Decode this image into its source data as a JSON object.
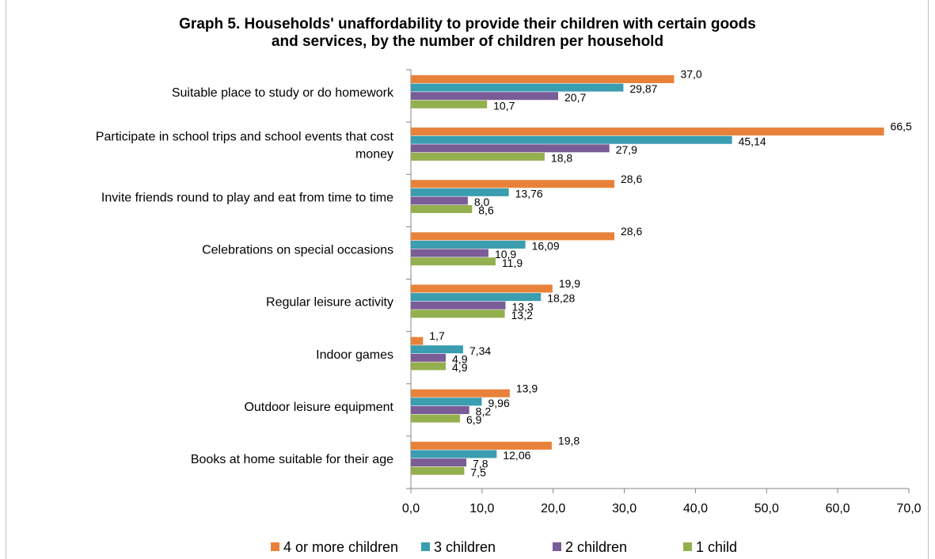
{
  "chart_data": {
    "type": "bar",
    "orientation": "horizontal",
    "title_lines": [
      "Graph 5. Households' unaffordability to provide their children with certain goods",
      "and services, by the number of children per household"
    ],
    "categories": [
      [
        "Suitable place to study or do homework"
      ],
      [
        "Participate in school trips and school events that cost",
        "money"
      ],
      [
        "Invite friends round to play and eat from time to time"
      ],
      [
        "Celebrations on special occasions"
      ],
      [
        "Regular leisure activity"
      ],
      [
        "Indoor games"
      ],
      [
        "Outdoor leisure equipment"
      ],
      [
        "Books at home suitable for their age"
      ]
    ],
    "series": [
      {
        "name": "4 or more children",
        "color": "#E8823A",
        "values": [
          37.0,
          66.5,
          28.6,
          28.6,
          19.9,
          1.7,
          13.9,
          19.8
        ],
        "labels": [
          "37,0",
          "66,5",
          "28,6",
          "28,6",
          "19,9",
          "1,7",
          "13,9",
          "19,8"
        ]
      },
      {
        "name": "3 children",
        "color": "#3A9DB0",
        "values": [
          29.87,
          45.14,
          13.76,
          16.09,
          18.28,
          7.34,
          9.96,
          12.06
        ],
        "labels": [
          "29,87",
          "45,14",
          "13,76",
          "16,09",
          "18,28",
          "7,34",
          "9,96",
          "12,06"
        ]
      },
      {
        "name": "2 children",
        "color": "#7A5C96",
        "values": [
          20.7,
          27.9,
          8.0,
          10.9,
          13.3,
          4.9,
          8.2,
          7.8
        ],
        "labels": [
          "20,7",
          "27,9",
          "8,0",
          "10,9",
          "13,3",
          "4,9",
          "8,2",
          "7,8"
        ]
      },
      {
        "name": "1 child",
        "color": "#93AF4E",
        "values": [
          10.7,
          18.8,
          8.6,
          11.9,
          13.2,
          4.9,
          6.9,
          7.5
        ],
        "labels": [
          "10,7",
          "18,8",
          "8,6",
          "11,9",
          "13,2",
          "4,9",
          "6,9",
          "7,5"
        ]
      }
    ],
    "x_ticks": [
      0,
      10,
      20,
      30,
      40,
      50,
      60,
      70
    ],
    "x_tick_labels": [
      "0,0",
      "10,0",
      "20,0",
      "30,0",
      "40,0",
      "50,0",
      "60,0",
      "70,0"
    ],
    "xlim": [
      0,
      70
    ],
    "grid": false,
    "legend_position": "bottom"
  }
}
